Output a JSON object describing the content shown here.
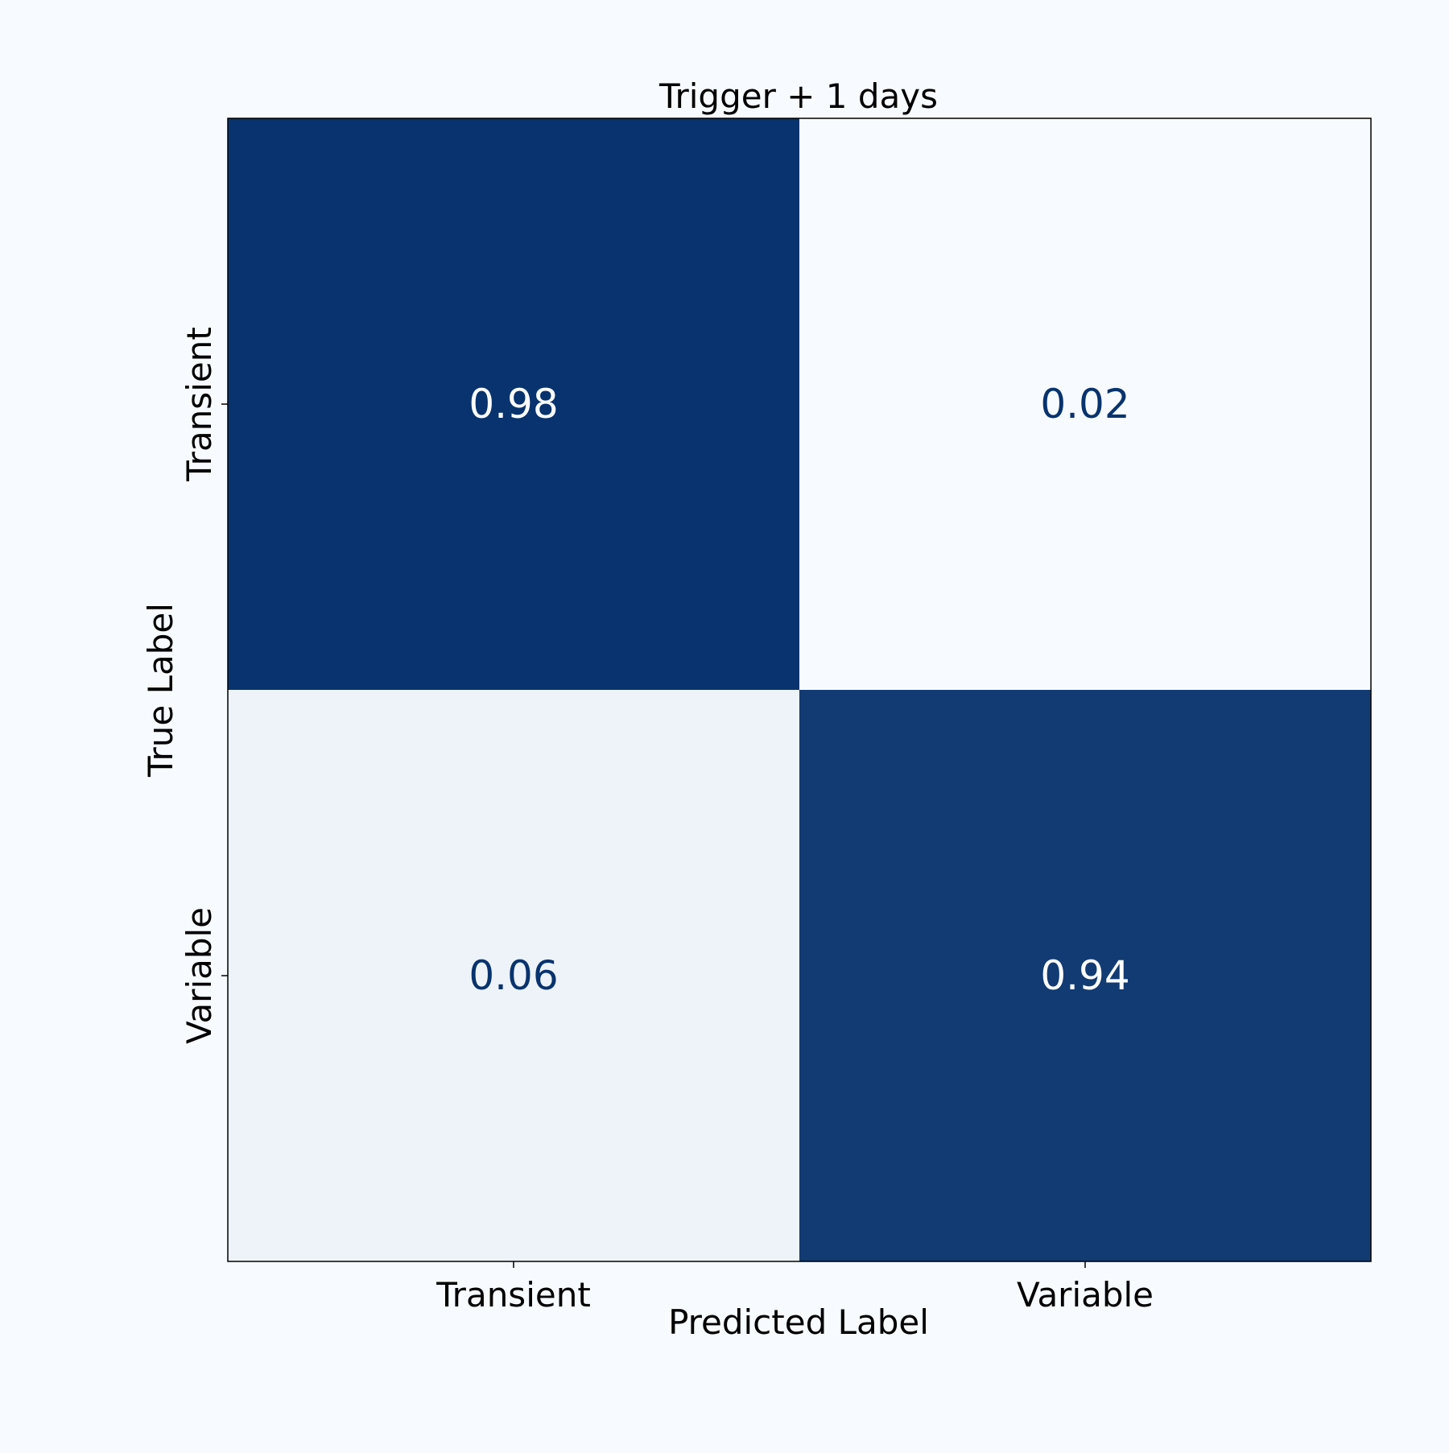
{
  "colors": {
    "background": "#f7fbff",
    "high": "#08336e",
    "low": "#f7fbff",
    "text_on_high": "#ffffff",
    "text_on_low": "#08336e",
    "axis_text": "#000000"
  },
  "chart_data": {
    "type": "heatmap",
    "title": "Trigger + 1 days",
    "xlabel": "Predicted Label",
    "ylabel": "True Label",
    "x_categories": [
      "Transient",
      "Variable"
    ],
    "y_categories": [
      "Transient",
      "Variable"
    ],
    "values": [
      [
        0.98,
        0.02
      ],
      [
        0.06,
        0.94
      ]
    ],
    "cell_labels": [
      [
        "0.98",
        "0.02"
      ],
      [
        "0.06",
        "0.94"
      ]
    ],
    "colormap": "Blues",
    "grid": false
  }
}
